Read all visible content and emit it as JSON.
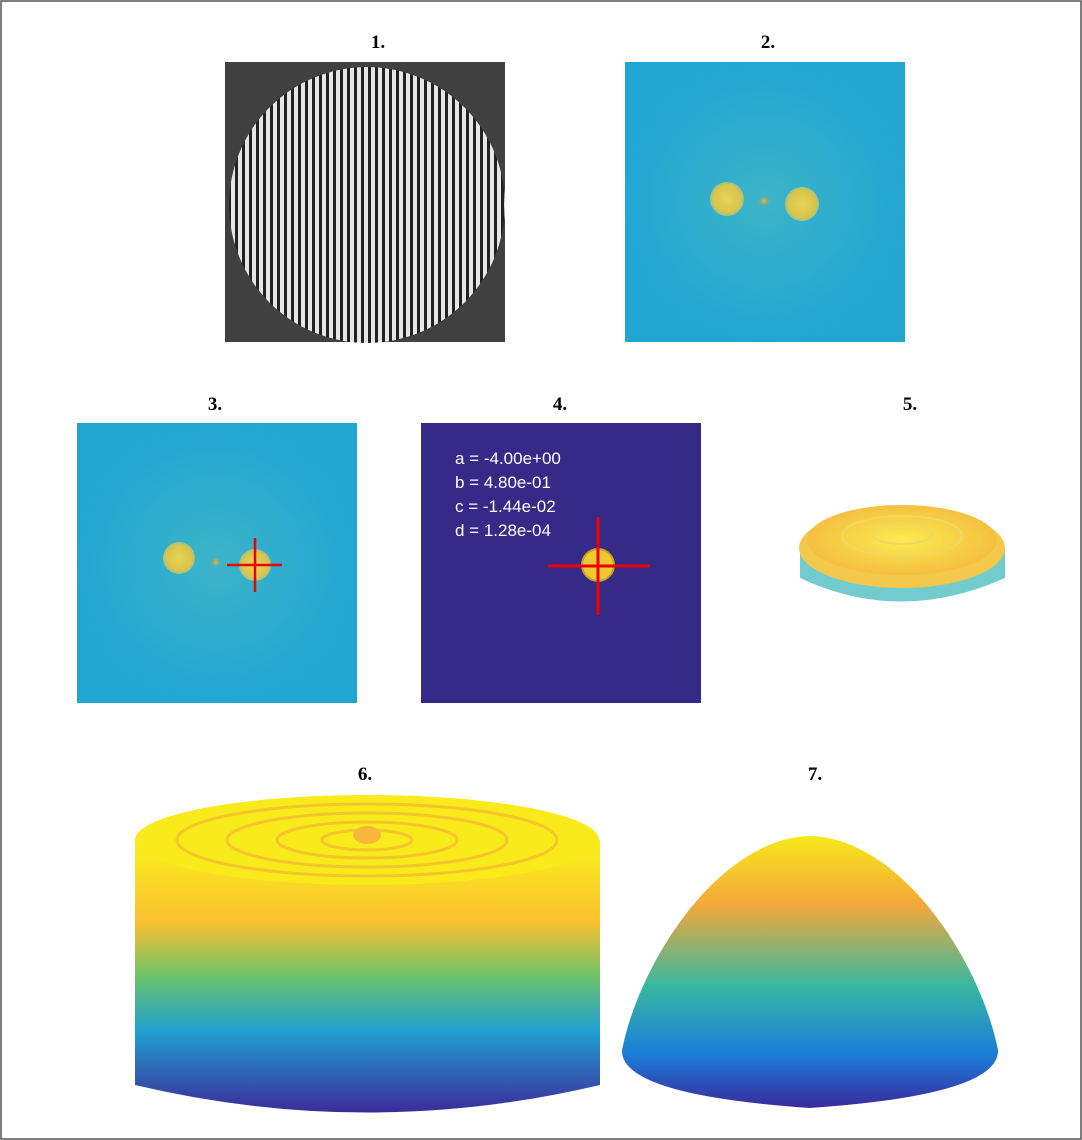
{
  "panels": [
    {
      "label": "1."
    },
    {
      "label": "2."
    },
    {
      "label": "3."
    },
    {
      "label": "4.",
      "annotations": [
        "a = -4.00e+00",
        "b = 4.80e-01",
        "c = -1.44e-02",
        "d = 1.28e-04"
      ]
    },
    {
      "label": "5."
    },
    {
      "label": "6."
    },
    {
      "label": "7."
    }
  ]
}
